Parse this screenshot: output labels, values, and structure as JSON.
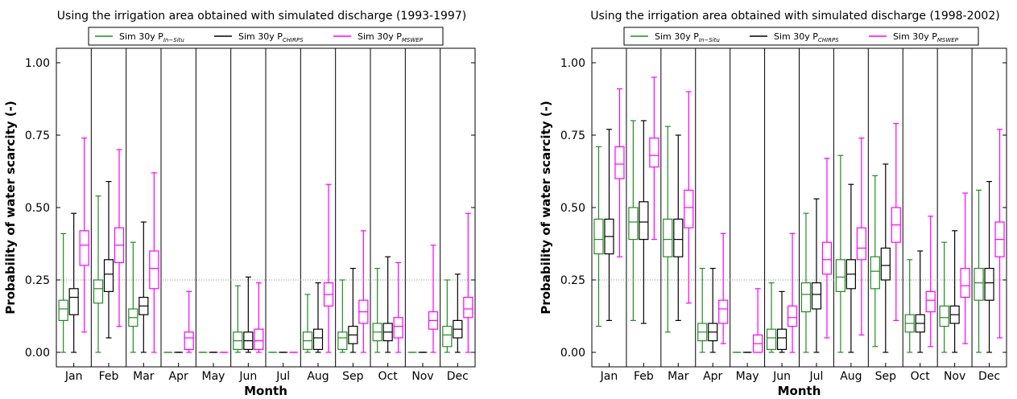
{
  "chart_data": [
    {
      "type": "box",
      "title": "Using the irrigation area obtained with simulated discharge (1993-1997)",
      "xlabel": "Month",
      "ylabel": "Probability of water scarcity (-)",
      "categories": [
        "Jan",
        "Feb",
        "Mar",
        "Apr",
        "May",
        "Jun",
        "Jul",
        "Aug",
        "Sep",
        "Oct",
        "Nov",
        "Dec"
      ],
      "ylim": [
        -0.05,
        1.05
      ],
      "yticks": [
        {
          "value": 0,
          "label": "0.00"
        },
        0.25,
        {
          "value": 0.5,
          "label": "0.50"
        },
        0.75,
        {
          "value": 1,
          "label": "1.00"
        }
      ],
      "hline": 0.25,
      "series": [
        {
          "name": "Sim 30y P",
          "name_sub": "In−Situ",
          "color": "#228b22",
          "values": [
            [
              0,
              0.11,
              0.15,
              0.18,
              0.41
            ],
            [
              0,
              0.17,
              0.22,
              0.25,
              0.54
            ],
            [
              0,
              0.09,
              0.12,
              0.15,
              0.38
            ],
            [
              0,
              0,
              0,
              0,
              0
            ],
            [
              0,
              0,
              0,
              0,
              0
            ],
            [
              0,
              0.01,
              0.04,
              0.07,
              0.23
            ],
            [
              0,
              0,
              0,
              0,
              0
            ],
            [
              0,
              0.01,
              0.04,
              0.07,
              0.2
            ],
            [
              0,
              0.01,
              0.05,
              0.07,
              0.25
            ],
            [
              0,
              0.04,
              0.07,
              0.1,
              0.29
            ],
            [
              0,
              0,
              0,
              0,
              0
            ],
            [
              0,
              0.02,
              0.06,
              0.09,
              0.25
            ]
          ]
        },
        {
          "name": "Sim 30y P",
          "name_sub": "CHIRPS",
          "color": "#000000",
          "values": [
            [
              0,
              0.13,
              0.19,
              0.22,
              0.48
            ],
            [
              0.05,
              0.21,
              0.27,
              0.32,
              0.59
            ],
            [
              0,
              0.13,
              0.16,
              0.19,
              0.45
            ],
            [
              0,
              0,
              0,
              0,
              0
            ],
            [
              0,
              0,
              0,
              0,
              0
            ],
            [
              0,
              0.01,
              0.04,
              0.07,
              0.26
            ],
            [
              0,
              0,
              0,
              0,
              0
            ],
            [
              0,
              0.01,
              0.05,
              0.08,
              0.24
            ],
            [
              0,
              0.03,
              0.06,
              0.09,
              0.29
            ],
            [
              0,
              0.04,
              0.07,
              0.1,
              0.33
            ],
            [
              0,
              0,
              0,
              0,
              0
            ],
            [
              0,
              0.05,
              0.08,
              0.11,
              0.27
            ]
          ]
        },
        {
          "name": "Sim 30y P",
          "name_sub": "MSWEP",
          "color": "#ff00ff",
          "values": [
            [
              0.07,
              0.3,
              0.37,
              0.42,
              0.74
            ],
            [
              0.09,
              0.31,
              0.37,
              0.43,
              0.7
            ],
            [
              0,
              0.22,
              0.29,
              0.35,
              0.62
            ],
            [
              0,
              0.01,
              0.05,
              0.07,
              0.21
            ],
            [
              0,
              0,
              0,
              0,
              0
            ],
            [
              0,
              0.01,
              0.04,
              0.08,
              0.24
            ],
            [
              0,
              0,
              0,
              0,
              0
            ],
            [
              0,
              0.16,
              0.2,
              0.24,
              0.58
            ],
            [
              0,
              0.1,
              0.14,
              0.18,
              0.42
            ],
            [
              0,
              0.05,
              0.09,
              0.12,
              0.31
            ],
            [
              0,
              0.08,
              0.11,
              0.14,
              0.37
            ],
            [
              0,
              0.12,
              0.15,
              0.19,
              0.48
            ]
          ]
        }
      ]
    },
    {
      "type": "box",
      "title": "Using the irrigation area obtained with simulated discharge (1998-2002)",
      "xlabel": "Month",
      "ylabel": "Probability of water scarcity (-)",
      "categories": [
        "Jan",
        "Feb",
        "Mar",
        "Apr",
        "May",
        "Jun",
        "Jul",
        "Aug",
        "Sep",
        "Oct",
        "Nov",
        "Dec"
      ],
      "ylim": [
        -0.05,
        1.05
      ],
      "yticks": [
        {
          "value": 0,
          "label": "0.00"
        },
        0.25,
        {
          "value": 0.5,
          "label": "0.50"
        },
        0.75,
        {
          "value": 1,
          "label": "1.00"
        }
      ],
      "hline": 0.25,
      "series": [
        {
          "name": "Sim 30y P",
          "name_sub": "In−Situ",
          "color": "#228b22",
          "values": [
            [
              0.09,
              0.34,
              0.39,
              0.46,
              0.71
            ],
            [
              0.11,
              0.39,
              0.45,
              0.5,
              0.8
            ],
            [
              0.07,
              0.33,
              0.39,
              0.46,
              0.78
            ],
            [
              0,
              0.04,
              0.07,
              0.1,
              0.29
            ],
            [
              0,
              0,
              0,
              0,
              0
            ],
            [
              0,
              0.01,
              0.05,
              0.08,
              0.24
            ],
            [
              0,
              0.14,
              0.2,
              0.24,
              0.48
            ],
            [
              0,
              0.21,
              0.26,
              0.32,
              0.68
            ],
            [
              0.02,
              0.22,
              0.28,
              0.33,
              0.61
            ],
            [
              0,
              0.07,
              0.1,
              0.13,
              0.32
            ],
            [
              0,
              0.09,
              0.12,
              0.16,
              0.38
            ],
            [
              0,
              0.18,
              0.24,
              0.29,
              0.56
            ]
          ]
        },
        {
          "name": "Sim 30y P",
          "name_sub": "CHIRPS",
          "color": "#000000",
          "values": [
            [
              0.11,
              0.34,
              0.4,
              0.46,
              0.77
            ],
            [
              0.1,
              0.39,
              0.45,
              0.52,
              0.8
            ],
            [
              0.11,
              0.33,
              0.39,
              0.46,
              0.75
            ],
            [
              0,
              0.04,
              0.07,
              0.1,
              0.29
            ],
            [
              0,
              0,
              0,
              0,
              0
            ],
            [
              0,
              0.01,
              0.05,
              0.08,
              0.21
            ],
            [
              0,
              0.15,
              0.2,
              0.24,
              0.53
            ],
            [
              0,
              0.22,
              0.27,
              0.32,
              0.58
            ],
            [
              0,
              0.25,
              0.3,
              0.36,
              0.65
            ],
            [
              0,
              0.07,
              0.1,
              0.13,
              0.35
            ],
            [
              0,
              0.1,
              0.13,
              0.16,
              0.42
            ],
            [
              0,
              0.18,
              0.24,
              0.29,
              0.59
            ]
          ]
        },
        {
          "name": "Sim 30y P",
          "name_sub": "MSWEP",
          "color": "#ff00ff",
          "values": [
            [
              0.33,
              0.6,
              0.65,
              0.71,
              0.91
            ],
            [
              0.39,
              0.64,
              0.68,
              0.74,
              0.95
            ],
            [
              0.17,
              0.43,
              0.5,
              0.56,
              0.9
            ],
            [
              0.03,
              0.1,
              0.15,
              0.18,
              0.41
            ],
            [
              0,
              0,
              0.03,
              0.06,
              0.22
            ],
            [
              0,
              0.09,
              0.12,
              0.16,
              0.41
            ],
            [
              0.05,
              0.27,
              0.32,
              0.38,
              0.67
            ],
            [
              0.06,
              0.32,
              0.36,
              0.43,
              0.74
            ],
            [
              0.11,
              0.38,
              0.44,
              0.5,
              0.79
            ],
            [
              0.02,
              0.14,
              0.18,
              0.21,
              0.47
            ],
            [
              0.03,
              0.19,
              0.23,
              0.29,
              0.55
            ],
            [
              0.05,
              0.33,
              0.39,
              0.45,
              0.77
            ]
          ]
        }
      ]
    }
  ]
}
